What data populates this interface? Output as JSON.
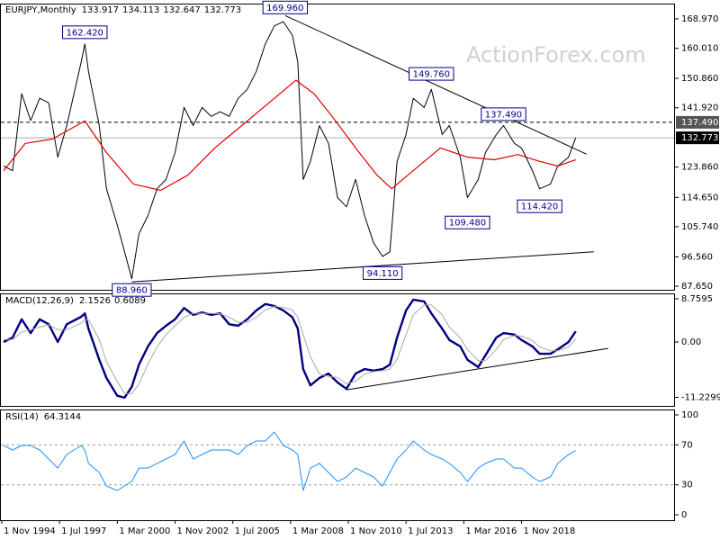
{
  "chart_data": [
    {
      "type": "line",
      "title": "EURJPY,Monthly",
      "ohlc": [
        133.917,
        134.113,
        132.647
      ],
      "watermark": "ActionForex.com",
      "xlim": [
        "1994-10",
        "2025-12"
      ],
      "xticks": [
        {
          "value": "1994-11",
          "label": "1 Nov 1994"
        },
        {
          "value": "1997-07",
          "label": "1 Jul 1997"
        },
        {
          "value": "2000-03",
          "label": "1 Mar 2000"
        },
        {
          "value": "2002-11",
          "label": "1 Nov 2002"
        },
        {
          "value": "2005-07",
          "label": "1 Jul 2005"
        },
        {
          "value": "2008-03",
          "label": "1 Mar 2008"
        },
        {
          "value": "2010-11",
          "label": "1 Nov 2010"
        },
        {
          "value": "2013-07",
          "label": "1 Jul 2013"
        },
        {
          "value": "2016-03",
          "label": "1 Mar 2016"
        },
        {
          "value": "2018-11",
          "label": "1 Nov 2018"
        }
      ],
      "ylim": [
        86.55,
        173.6
      ],
      "yticks": [
        {
          "value": 87.65,
          "label": "87.650"
        },
        {
          "value": 96.56,
          "label": "96.560"
        },
        {
          "value": 105.74,
          "label": "105.740"
        },
        {
          "value": 114.65,
          "label": "114.650"
        },
        {
          "value": 123.86,
          "label": "123.860"
        },
        {
          "value": 141.92,
          "label": "141.920"
        },
        {
          "value": 150.86,
          "label": "150.860"
        },
        {
          "value": 160.01,
          "label": "160.010"
        },
        {
          "value": 168.97,
          "label": "168.970"
        }
      ],
      "x": [
        "1994-12",
        "1995-05",
        "1995-10",
        "1996-03",
        "1996-08",
        "1997-01",
        "1997-06",
        "1997-11",
        "1998-07",
        "1998-09",
        "1998-11",
        "1999-05",
        "1999-09",
        "2000-03",
        "2000-07",
        "2000-11",
        "2001-03",
        "2001-08",
        "2002-01",
        "2002-06",
        "2002-11",
        "2003-04",
        "2003-09",
        "2004-02",
        "2004-07",
        "2004-12",
        "2005-05",
        "2005-10",
        "2006-03",
        "2006-08",
        "2007-01",
        "2007-06",
        "2007-11",
        "2008-04",
        "2008-07",
        "2008-10",
        "2009-02",
        "2009-07",
        "2009-12",
        "2010-05",
        "2010-10",
        "2011-03",
        "2011-08",
        "2012-01",
        "2012-06",
        "2012-10",
        "2013-02",
        "2013-07",
        "2013-11",
        "2014-05",
        "2014-09",
        "2015-03",
        "2015-07",
        "2016-01",
        "2016-05",
        "2016-11",
        "2017-03",
        "2017-09",
        "2018-01",
        "2018-07",
        "2018-11",
        "2019-05",
        "2019-09",
        "2020-03",
        "2020-07",
        "2021-01",
        "2021-05"
      ],
      "series": [
        {
          "color": "#000000",
          "values": [
            124.2,
            122.8,
            146.2,
            138.0,
            144.8,
            143.4,
            126.9,
            136.5,
            155.8,
            161.3,
            153.0,
            136.5,
            117.3,
            106.3,
            98.1,
            89.9,
            103.6,
            109.1,
            117.3,
            120.1,
            128.3,
            142.0,
            136.5,
            142.0,
            139.3,
            140.7,
            139.3,
            144.8,
            147.5,
            153.0,
            161.3,
            166.8,
            168.1,
            164.0,
            155.8,
            120.1,
            125.6,
            136.5,
            131.1,
            114.6,
            111.8,
            120.1,
            109.1,
            100.8,
            96.7,
            98.1,
            125.6,
            133.8,
            144.8,
            142.0,
            147.5,
            133.8,
            136.5,
            126.9,
            114.6,
            120.1,
            128.3,
            133.8,
            136.5,
            131.1,
            129.7,
            122.8,
            117.3,
            118.7,
            124.2,
            126.9,
            132.773
          ]
        },
        {
          "color": "#e00000",
          "x": [
            "1994-12",
            "1995-12",
            "1997-03",
            "1998-09",
            "1999-09",
            "2000-12",
            "2002-03",
            "2003-06",
            "2004-09",
            "2005-12",
            "2007-03",
            "2008-06",
            "2009-04",
            "2010-02",
            "2011-05",
            "2012-03",
            "2012-11",
            "2013-11",
            "2015-02",
            "2016-05",
            "2017-08",
            "2018-09",
            "2019-09",
            "2020-07",
            "2021-05"
          ],
          "values": [
            122.8,
            131.1,
            132.4,
            137.9,
            128.3,
            118.7,
            116.8,
            121.4,
            129.7,
            136.5,
            143.4,
            150.3,
            146.2,
            139.3,
            128.3,
            121.4,
            117.3,
            122.8,
            129.7,
            126.9,
            126.1,
            127.7,
            125.6,
            124.2,
            126.1
          ]
        }
      ],
      "price_lines": [
        {
          "value": 137.49,
          "label": "137.490"
        }
      ],
      "annotations": [
        {
          "x": "2007-12",
          "value": 169.96,
          "label": "169.960"
        },
        {
          "x": "1998-09",
          "value": 162.42,
          "label": "162.420"
        },
        {
          "x": "2014-09",
          "value": 149.76,
          "label": "149.760"
        },
        {
          "x": "2018-01",
          "value": 137.49,
          "label": "137.490"
        },
        {
          "x": "2019-09",
          "value": 114.42,
          "label": "114.420"
        },
        {
          "x": "2016-05",
          "value": 109.48,
          "label": "109.480"
        },
        {
          "x": "2012-06",
          "value": 94.11,
          "label": "94.110"
        },
        {
          "x": "2000-11",
          "value": 88.96,
          "label": "88.960"
        }
      ],
      "trendlines": [
        {
          "x": [
            "2007-12",
            "2021-11"
          ],
          "values": [
            169.96,
            127.8
          ]
        },
        {
          "x": [
            "2000-11",
            "2022-03"
          ],
          "values": [
            88.96,
            98.1
          ]
        }
      ]
    },
    {
      "type": "line",
      "title": "MACD(12,26,9)",
      "ylim": [
        -12.96,
        9.85
      ],
      "yticks": [
        8.7595,
        {
          "value": 0,
          "label": "0.00"
        },
        -11.2299
      ],
      "x": [
        "1994-12",
        "1995-05",
        "1995-10",
        "1996-03",
        "1996-08",
        "1997-01",
        "1997-06",
        "1997-11",
        "1998-07",
        "1998-09",
        "1998-11",
        "1999-05",
        "1999-09",
        "2000-03",
        "2000-07",
        "2000-11",
        "2001-03",
        "2001-08",
        "2002-01",
        "2002-06",
        "2002-11",
        "2003-04",
        "2003-09",
        "2004-02",
        "2004-07",
        "2004-12",
        "2005-05",
        "2005-10",
        "2006-03",
        "2006-08",
        "2007-01",
        "2007-06",
        "2007-11",
        "2008-04",
        "2008-07",
        "2008-10",
        "2009-02",
        "2009-07",
        "2009-12",
        "2010-05",
        "2010-10",
        "2011-03",
        "2011-08",
        "2012-01",
        "2012-06",
        "2012-10",
        "2013-02",
        "2013-07",
        "2013-11",
        "2014-05",
        "2014-09",
        "2015-03",
        "2015-07",
        "2016-01",
        "2016-05",
        "2016-11",
        "2017-03",
        "2017-09",
        "2018-01",
        "2018-07",
        "2018-11",
        "2019-05",
        "2019-09",
        "2020-03",
        "2020-07",
        "2021-01",
        "2021-05"
      ],
      "series": [
        {
          "color": "#000080",
          "values": [
            0,
            0.9,
            4.6,
            1.8,
            4.6,
            3.6,
            0,
            3.6,
            5.1,
            5.8,
            2.7,
            -3.6,
            -7.3,
            -10.9,
            -11.3,
            -9.1,
            -4.6,
            -0.9,
            1.8,
            3.3,
            4.6,
            6.9,
            5.5,
            6.0,
            5.5,
            5.8,
            3.6,
            3.3,
            4.6,
            6.4,
            7.7,
            7.3,
            6.4,
            5.0,
            2.7,
            -5.5,
            -8.8,
            -7.3,
            -6.4,
            -8.2,
            -9.5,
            -6.4,
            -5.5,
            -5.8,
            -5.5,
            -4.6,
            0.9,
            6.4,
            8.6,
            8.2,
            5.8,
            2.7,
            0.4,
            -0.9,
            -3.6,
            -5.1,
            -2.7,
            0.9,
            1.8,
            1.5,
            0.4,
            -0.9,
            -2.4,
            -2.4,
            -1.5,
            0,
            2.1526
          ]
        },
        {
          "color": "#a8a8a8",
          "values": [
            0.5,
            0.5,
            2.0,
            2.5,
            3.0,
            3.5,
            2.5,
            2.5,
            3.8,
            4.5,
            4.5,
            0.5,
            -4.0,
            -8.0,
            -10.5,
            -10.5,
            -8.5,
            -4.5,
            -1.0,
            1.5,
            3.3,
            5.0,
            5.8,
            5.8,
            5.8,
            5.7,
            5.0,
            4.0,
            4.0,
            5.0,
            6.5,
            7.2,
            7.0,
            6.5,
            5.0,
            1.5,
            -3.0,
            -6.5,
            -7.0,
            -7.2,
            -8.5,
            -8.0,
            -6.5,
            -6.0,
            -5.8,
            -5.5,
            -3.5,
            1.5,
            5.5,
            7.5,
            7.5,
            5.5,
            3.0,
            0.8,
            -1.5,
            -3.8,
            -3.8,
            -1.5,
            0.5,
            1.3,
            1.2,
            0.3,
            -1.0,
            -1.8,
            -1.8,
            -1.0,
            0.6089
          ]
        }
      ],
      "trendlines": [
        {
          "x": [
            "2010-10",
            "2022-11"
          ],
          "values": [
            -9.7,
            -1.3
          ]
        }
      ]
    },
    {
      "type": "line",
      "title": "RSI(14)",
      "ylim": [
        -5.4,
        105.4
      ],
      "yticks": [
        100,
        70,
        30,
        0
      ],
      "levels": [
        70,
        30
      ],
      "x": [
        "1994-12",
        "1995-05",
        "1995-10",
        "1996-03",
        "1996-08",
        "1997-01",
        "1997-06",
        "1997-11",
        "1998-07",
        "1998-09",
        "1998-11",
        "1999-05",
        "1999-09",
        "2000-03",
        "2000-07",
        "2000-11",
        "2001-03",
        "2001-08",
        "2002-01",
        "2002-06",
        "2002-11",
        "2003-04",
        "2003-09",
        "2004-02",
        "2004-07",
        "2004-12",
        "2005-05",
        "2005-10",
        "2006-03",
        "2006-08",
        "2007-01",
        "2007-06",
        "2007-11",
        "2008-04",
        "2008-07",
        "2008-10",
        "2009-02",
        "2009-07",
        "2009-12",
        "2010-05",
        "2010-10",
        "2011-03",
        "2011-08",
        "2012-01",
        "2012-06",
        "2012-10",
        "2013-02",
        "2013-07",
        "2013-11",
        "2014-05",
        "2014-09",
        "2015-03",
        "2015-07",
        "2016-01",
        "2016-05",
        "2016-11",
        "2017-03",
        "2017-09",
        "2018-01",
        "2018-07",
        "2018-11",
        "2019-05",
        "2019-09",
        "2020-03",
        "2020-07",
        "2021-01",
        "2021-05"
      ],
      "series": [
        {
          "color": "#1e90ff",
          "values": [
            69.4,
            64.9,
            69.4,
            69.4,
            64.9,
            55.9,
            46.8,
            60.4,
            69.4,
            64.9,
            51.4,
            42.3,
            28.8,
            24.3,
            28.8,
            33.3,
            46.8,
            46.8,
            51.4,
            55.9,
            60.4,
            73.9,
            55.9,
            60.4,
            64.9,
            64.9,
            64.9,
            60.4,
            69.4,
            73.9,
            73.9,
            82.9,
            69.4,
            64.9,
            60.4,
            24.3,
            46.8,
            51.4,
            42.3,
            33.3,
            37.8,
            46.8,
            42.3,
            37.8,
            28.8,
            42.3,
            55.9,
            64.9,
            73.9,
            64.9,
            60.4,
            55.9,
            51.4,
            42.3,
            33.3,
            46.8,
            51.4,
            55.9,
            55.9,
            46.8,
            46.8,
            37.8,
            33.3,
            37.8,
            51.4,
            60.4,
            64.3144
          ]
        }
      ]
    }
  ]
}
